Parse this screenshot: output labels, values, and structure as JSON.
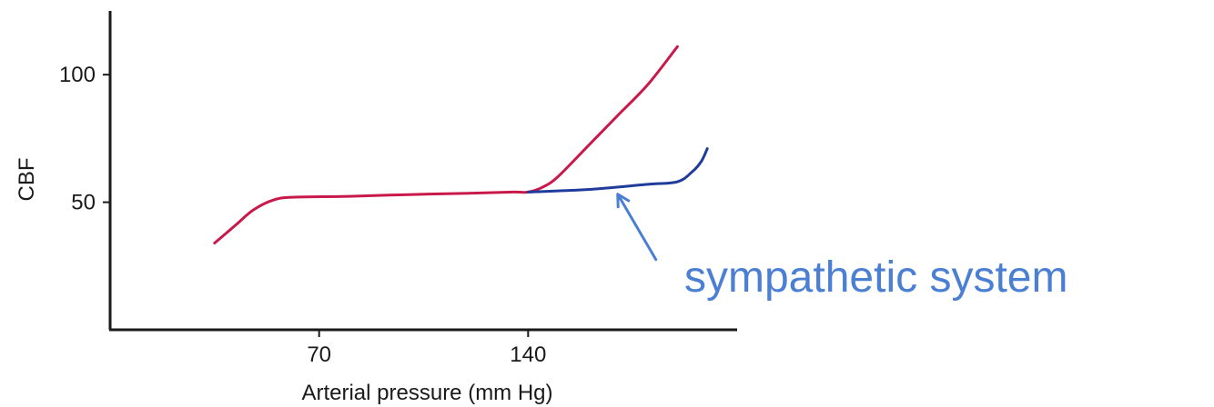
{
  "chart_data": {
    "type": "line",
    "title": "",
    "xlabel": "Arterial pressure (mm Hg)",
    "ylabel": "CBF",
    "xlim": [
      0,
      210
    ],
    "ylim": [
      0,
      125
    ],
    "x_ticks": [
      {
        "value": 70,
        "label": "70"
      },
      {
        "value": 140,
        "label": "140"
      }
    ],
    "y_ticks": [
      {
        "value": 50,
        "label": "50"
      },
      {
        "value": 100,
        "label": "100"
      }
    ],
    "grid": false,
    "series": [
      {
        "color": "#c8194a",
        "points": [
          [
            35,
            34
          ],
          [
            42,
            41
          ],
          [
            48,
            47
          ],
          [
            55,
            51
          ],
          [
            62,
            52
          ],
          [
            80,
            52.3
          ],
          [
            100,
            53
          ],
          [
            120,
            53.5
          ],
          [
            135,
            54
          ],
          [
            140,
            54
          ],
          [
            145,
            56
          ],
          [
            150,
            60
          ],
          [
            160,
            72
          ],
          [
            170,
            84
          ],
          [
            180,
            96
          ],
          [
            190,
            111
          ]
        ]
      },
      {
        "color": "#1f3c9c",
        "points": [
          [
            140,
            54
          ],
          [
            160,
            55
          ],
          [
            180,
            57
          ],
          [
            190,
            58
          ],
          [
            195,
            62
          ],
          [
            198,
            66
          ],
          [
            200,
            71
          ]
        ]
      }
    ],
    "annotations": [
      {
        "text": "sympathetic system",
        "color": "#4a7fd3",
        "points_to": {
          "x": 170,
          "y": 56
        }
      }
    ]
  }
}
